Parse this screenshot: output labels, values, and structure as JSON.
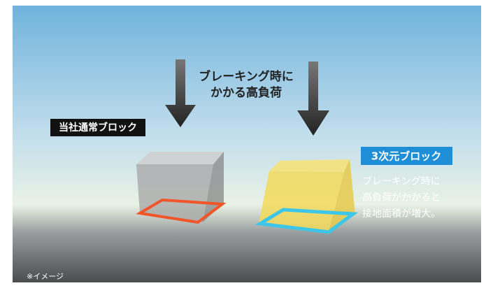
{
  "arrow_label": {
    "lines": [
      "ブレーキング時に",
      "かかる高負荷"
    ]
  },
  "standard_block": {
    "label": "当社通常ブロック"
  },
  "three_d_block": {
    "label": "3次元ブロック",
    "description": {
      "lines": [
        "ブレーキング時に",
        "高負荷がかかると",
        "接地面積が増大。"
      ]
    }
  },
  "note": "※イメージ"
}
